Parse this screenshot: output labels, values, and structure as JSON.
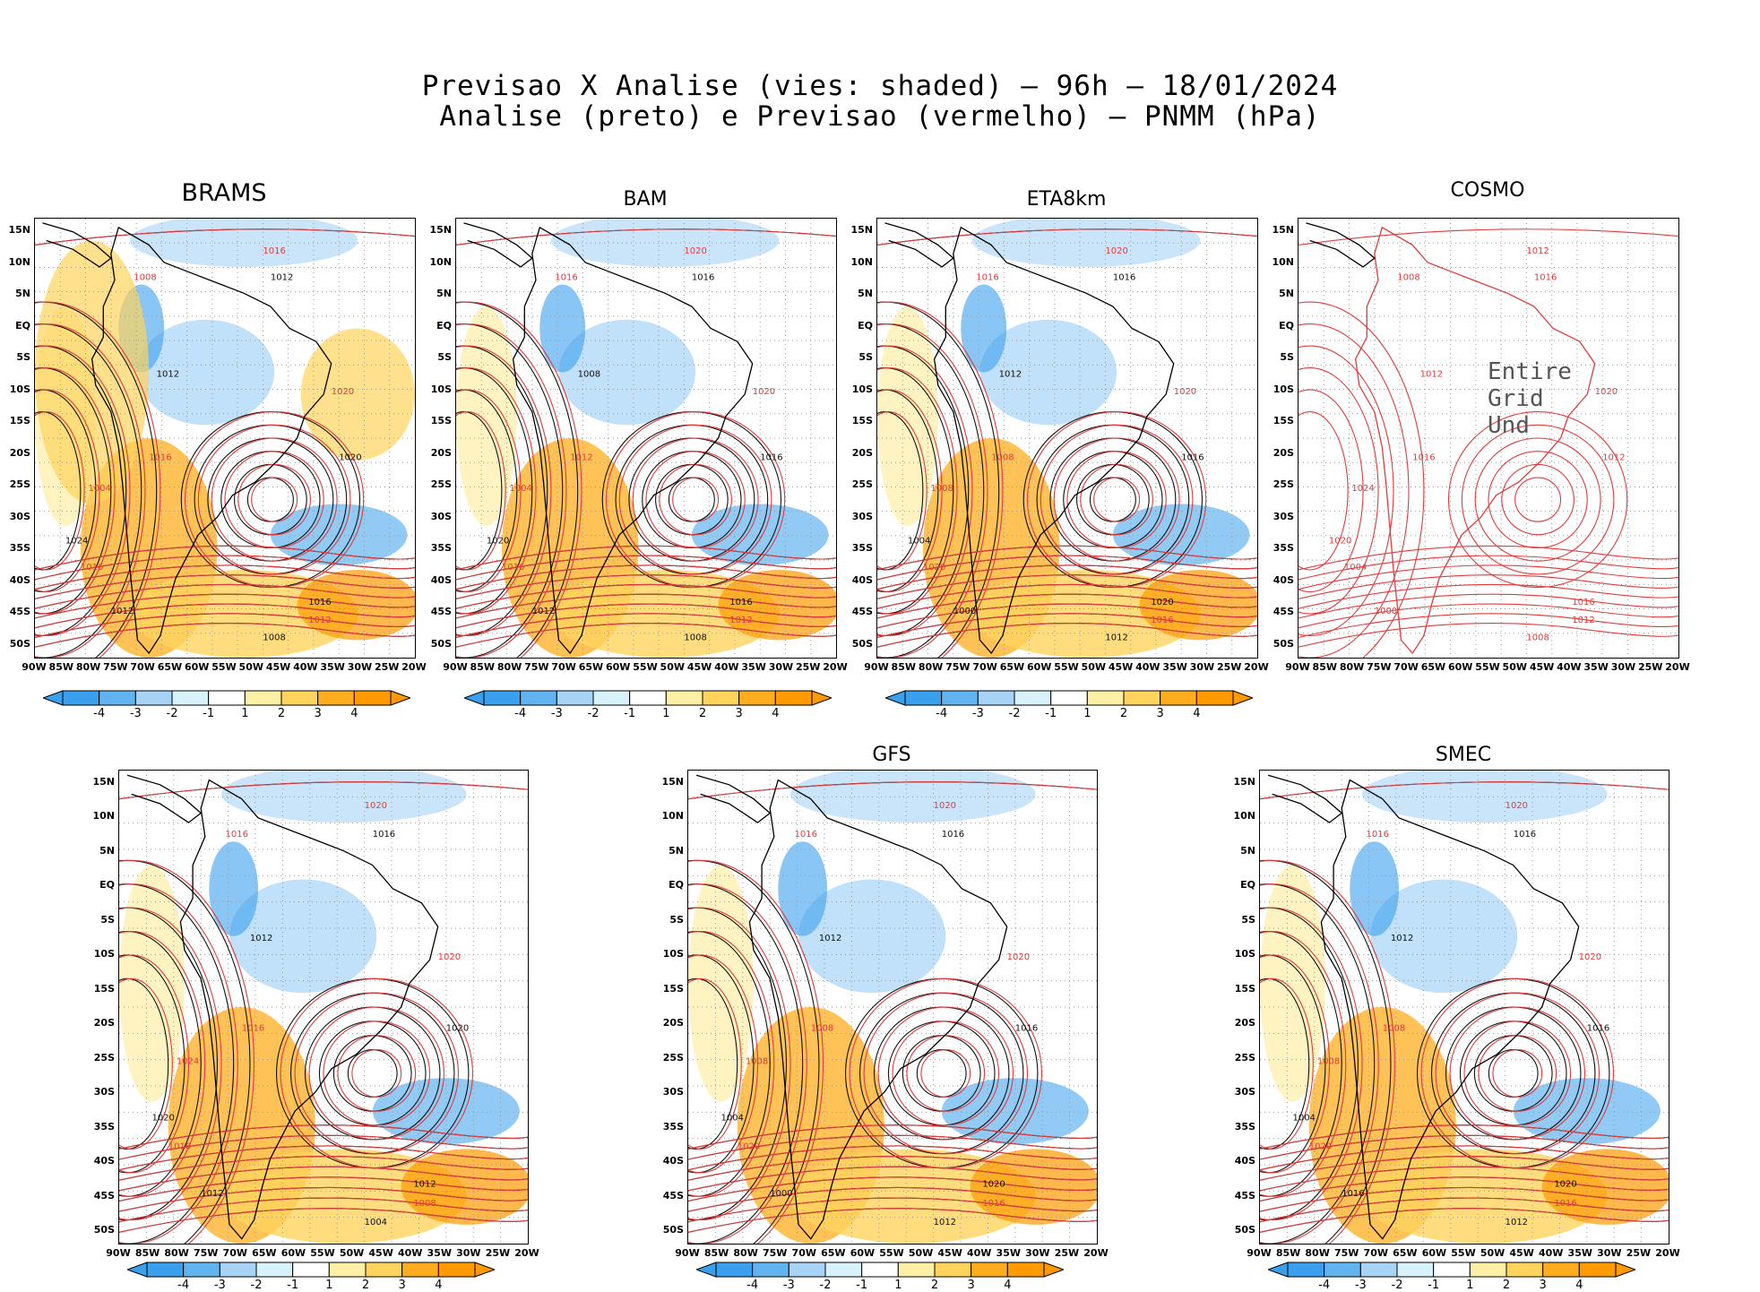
{
  "title": {
    "line1": "Previsao X Analise (vies: shaded) – 96h – 18/01/2024",
    "line2": "Analise (preto) e Previsao (vermelho) – PNMM (hPa)"
  },
  "axes": {
    "lat_labels": [
      "15N",
      "10N",
      "5N",
      "EQ",
      "5S",
      "10S",
      "15S",
      "20S",
      "25S",
      "30S",
      "35S",
      "40S",
      "45S",
      "50S"
    ],
    "lon_labels": [
      "90W",
      "85W",
      "80W",
      "75W",
      "70W",
      "65W",
      "60W",
      "55W",
      "50W",
      "45W",
      "40W",
      "35W",
      "30W",
      "25W",
      "20W"
    ]
  },
  "colorbar": {
    "ticks": [
      "-4",
      "-3",
      "-2",
      "-1",
      "1",
      "2",
      "3",
      "4"
    ],
    "colors": [
      "#3aa0ee",
      "#62b4f0",
      "#a7d3f6",
      "#d8f2fb",
      "#ffffff",
      "#fff0a6",
      "#ffd35c",
      "#ffad1f",
      "#ff9a00"
    ]
  },
  "panels": [
    {
      "name": "BRAMS",
      "title": "BRAMS",
      "has_colorbar": true,
      "overlay": "",
      "isobars": [
        "1016",
        "1012",
        "1008",
        "1012",
        "1016",
        "1020",
        "1020",
        "1016",
        "1012",
        "1008",
        "1004",
        "1024",
        "1016",
        "1012"
      ]
    },
    {
      "name": "BAM",
      "title": "BAM",
      "has_colorbar": true,
      "overlay": "",
      "isobars": [
        "1020",
        "1016",
        "1016",
        "1008",
        "1012",
        "1016",
        "1020",
        "1016",
        "1012",
        "1008",
        "1004",
        "1020",
        "1016",
        "1012"
      ]
    },
    {
      "name": "ETA8km",
      "title": "ETA8km",
      "has_colorbar": true,
      "overlay": "",
      "isobars": [
        "1020",
        "1016",
        "1016",
        "1012",
        "1008",
        "1016",
        "1020",
        "1020",
        "1016",
        "1012",
        "1008",
        "1004",
        "1020",
        "1000"
      ]
    },
    {
      "name": "COSMO",
      "title": "COSMO",
      "has_colorbar": false,
      "overlay": "Entire Grid Und",
      "isobars": [
        "1012",
        "1016",
        "1008",
        "1012",
        "1016",
        "1012",
        "1020",
        "1016",
        "1012",
        "1008",
        "1024",
        "1020",
        "1004",
        "1000"
      ]
    },
    {
      "name": "panel5",
      "title": "",
      "has_colorbar": true,
      "overlay": "",
      "isobars": [
        "1020",
        "1016",
        "1016",
        "1012",
        "1016",
        "1020",
        "1020",
        "1012",
        "1008",
        "1004",
        "1024",
        "1020",
        "1016",
        "1012"
      ]
    },
    {
      "name": "GFS",
      "title": "GFS",
      "has_colorbar": true,
      "overlay": "",
      "isobars": [
        "1020",
        "1016",
        "1016",
        "1012",
        "1008",
        "1016",
        "1020",
        "1020",
        "1016",
        "1012",
        "1008",
        "1004",
        "1020",
        "1000"
      ]
    },
    {
      "name": "SMEC",
      "title": "SMEC",
      "has_colorbar": true,
      "overlay": "",
      "isobars": [
        "1020",
        "1016",
        "1016",
        "1012",
        "1008",
        "1016",
        "1020",
        "1020",
        "1016",
        "1012",
        "1008",
        "1004",
        "1020",
        "1016"
      ]
    }
  ]
}
